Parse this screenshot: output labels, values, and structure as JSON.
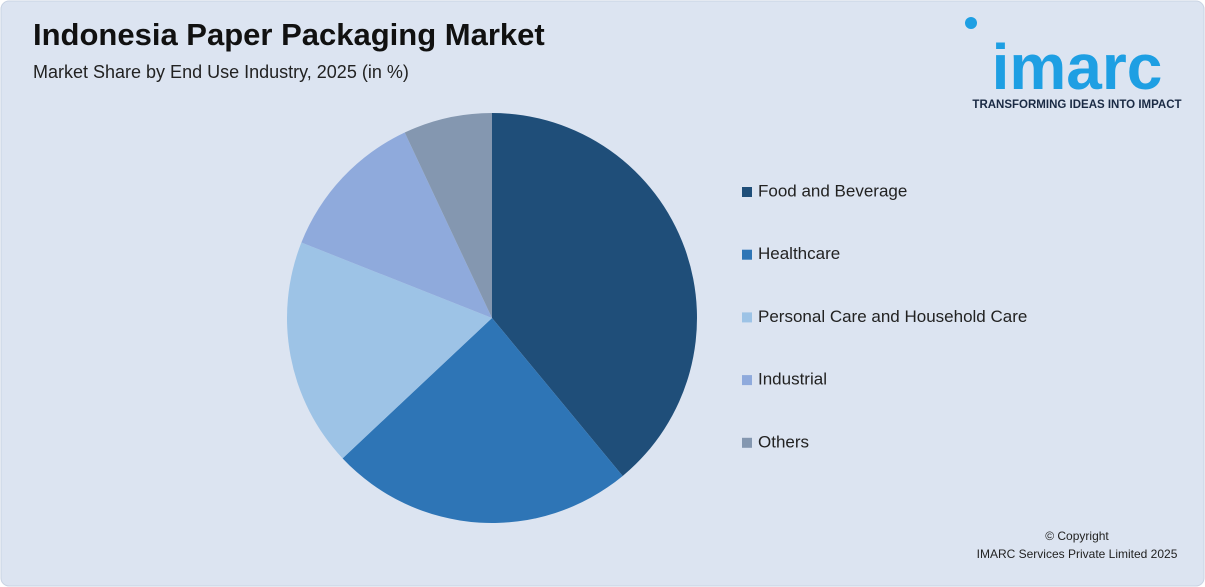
{
  "chart_data": {
    "type": "pie",
    "title": "Indonesia Paper Packaging Market",
    "subtitle": "Market Share by End Use Industry, 2025 (in %)",
    "categories": [
      "Food and Beverage",
      "Healthcare",
      "Personal Care and Household Care",
      "Industrial",
      "Others"
    ],
    "values": [
      39,
      24,
      18,
      12,
      7
    ],
    "colors": [
      "#1f4e79",
      "#2e75b6",
      "#9dc3e6",
      "#8faadc",
      "#8497b0"
    ],
    "legend": "right"
  },
  "logo": {
    "name": "imarc",
    "tagline": "TRANSFORMING IDEAS INTO IMPACT"
  },
  "copyright": [
    "© Copyright",
    "IMARC Services Private Limited 2025"
  ]
}
